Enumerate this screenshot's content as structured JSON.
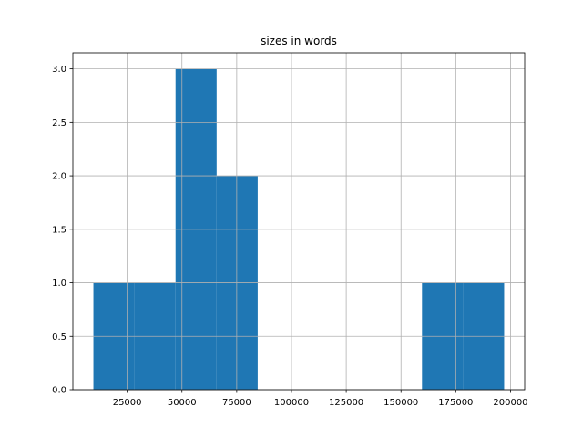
{
  "chart_data": {
    "type": "histogram",
    "title": "sizes in words",
    "bins": [
      9583,
      28333,
      47083,
      65833,
      84583,
      103333,
      122083,
      140833,
      159583,
      178333,
      197083
    ],
    "values": [
      1,
      1,
      3,
      2,
      0,
      0,
      0,
      0,
      1,
      1
    ],
    "color": "#1f77b4",
    "xlim": [
      208,
      206458
    ],
    "xticks": [
      25000,
      50000,
      75000,
      100000,
      125000,
      150000,
      175000,
      200000
    ],
    "ylim": [
      0,
      3.15
    ],
    "yticks": [
      {
        "value": 0,
        "label": "0.0"
      },
      0.5,
      {
        "value": 1,
        "label": "1.0"
      },
      1.5,
      {
        "value": 2,
        "label": "2.0"
      },
      2.5,
      {
        "value": 3,
        "label": "3.0"
      }
    ],
    "grid": true
  }
}
